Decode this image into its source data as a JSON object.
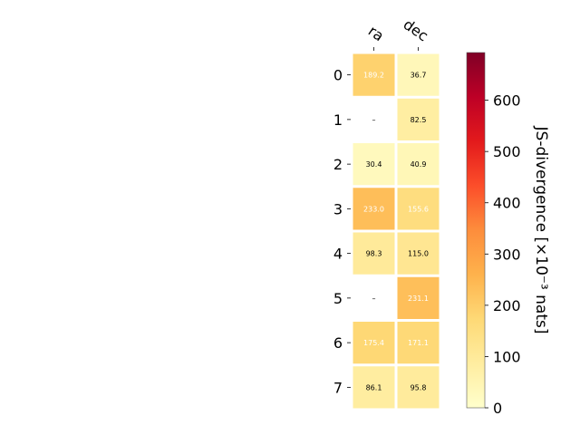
{
  "chart_data": {
    "type": "heatmap",
    "columns": [
      "ra",
      "dec"
    ],
    "rows": [
      "0",
      "1",
      "2",
      "3",
      "4",
      "5",
      "6",
      "7"
    ],
    "values": [
      [
        189.2,
        36.7
      ],
      [
        null,
        82.5
      ],
      [
        30.4,
        40.9
      ],
      [
        233.0,
        155.6
      ],
      [
        98.3,
        115.0
      ],
      [
        null,
        231.1
      ],
      [
        175.4,
        171.1
      ],
      [
        86.1,
        95.8
      ]
    ],
    "labels": [
      [
        "189.2",
        "36.7"
      ],
      [
        "–",
        "82.5"
      ],
      [
        "30.4",
        "40.9"
      ],
      [
        "233.0",
        "155.6"
      ],
      [
        "98.3",
        "115.0"
      ],
      [
        "–",
        "231.1"
      ],
      [
        "175.4",
        "171.1"
      ],
      [
        "86.1",
        "95.8"
      ]
    ],
    "colorbar": {
      "label": "JS-divergence [×10⁻³ nats]",
      "range": [
        0,
        693
      ],
      "ticks": [
        "0",
        "100",
        "200",
        "300",
        "400",
        "500",
        "600"
      ],
      "tick_values": [
        0,
        100,
        200,
        300,
        400,
        500,
        600
      ],
      "colormap": "YlOrRd"
    },
    "grid": false
  }
}
